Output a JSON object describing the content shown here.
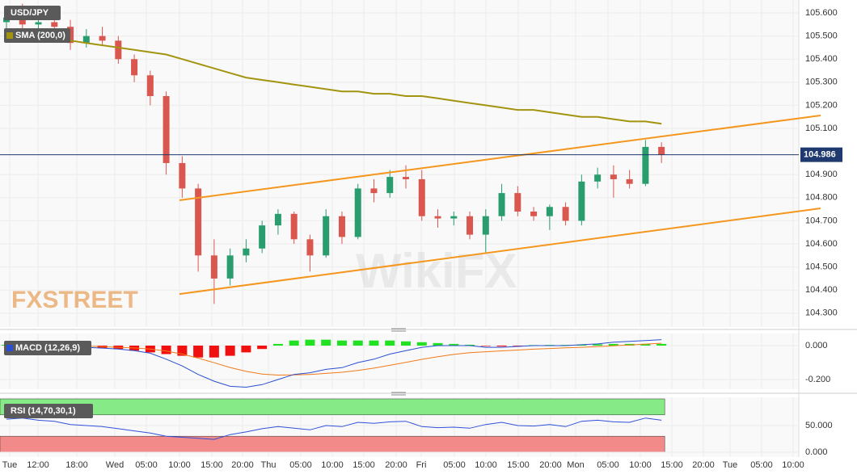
{
  "chart_data": [
    {
      "type": "candlestick",
      "title": "USD/JPY",
      "x_labels": [
        "Tue",
        "12:00",
        "18:00",
        "Wed",
        "05:00",
        "10:00",
        "15:00",
        "20:00",
        "Thu",
        "05:00",
        "10:00",
        "15:00",
        "20:00",
        "Fri",
        "05:00",
        "10:00",
        "15:00",
        "20:00",
        "Mon",
        "05:00",
        "10:00",
        "15:00",
        "20:00",
        "Tue",
        "05:00",
        "10:00"
      ],
      "open": [
        105.56,
        105.58,
        105.55,
        105.56,
        105.54,
        105.47,
        105.5,
        105.48,
        105.4,
        105.33,
        105.24,
        104.95,
        104.84,
        104.55,
        104.45,
        104.55,
        104.58,
        104.68,
        104.73,
        104.62,
        104.55,
        104.72,
        104.63,
        104.84,
        104.82,
        104.89,
        104.88,
        104.72,
        104.71,
        104.72,
        104.64,
        104.72,
        104.82,
        104.74,
        104.72,
        104.76,
        104.7,
        104.87,
        104.9,
        104.88,
        104.86,
        105.02
      ],
      "high": [
        105.62,
        105.64,
        105.6,
        105.6,
        105.57,
        105.53,
        105.54,
        105.5,
        105.42,
        105.35,
        105.26,
        104.98,
        104.86,
        104.62,
        104.58,
        104.62,
        104.7,
        104.75,
        104.74,
        104.64,
        104.75,
        104.74,
        104.86,
        104.88,
        104.92,
        104.94,
        104.92,
        104.75,
        104.74,
        104.74,
        104.75,
        104.86,
        104.85,
        104.76,
        104.77,
        104.78,
        104.9,
        104.93,
        104.94,
        104.92,
        105.05,
        105.04
      ],
      "low": [
        105.5,
        105.52,
        105.5,
        105.52,
        105.44,
        105.45,
        105.46,
        105.38,
        105.3,
        105.2,
        104.9,
        104.8,
        104.48,
        104.34,
        104.42,
        104.52,
        104.56,
        104.64,
        104.6,
        104.48,
        104.54,
        104.6,
        104.62,
        104.78,
        104.8,
        104.84,
        104.7,
        104.67,
        104.68,
        104.62,
        104.56,
        104.7,
        104.72,
        104.7,
        104.66,
        104.68,
        104.68,
        104.84,
        104.8,
        104.84,
        104.85,
        104.95
      ],
      "close": [
        105.58,
        105.55,
        105.56,
        105.54,
        105.47,
        105.5,
        105.48,
        105.4,
        105.33,
        105.24,
        104.95,
        104.84,
        104.55,
        104.45,
        104.55,
        104.58,
        104.68,
        104.73,
        104.62,
        104.55,
        104.72,
        104.63,
        104.84,
        104.82,
        104.89,
        104.88,
        104.72,
        104.71,
        104.72,
        104.64,
        104.72,
        104.82,
        104.74,
        104.72,
        104.76,
        104.7,
        104.87,
        104.9,
        104.88,
        104.86,
        105.02,
        104.986
      ],
      "up_color": "#2a9d6f",
      "down_color": "#d9574f",
      "price_line_color": "#1f3a6e",
      "ylim": [
        104.24,
        105.656
      ],
      "yticks": [
        {
          "value": 104.3,
          "label": "104.300"
        },
        {
          "value": 104.4,
          "label": "104.400"
        },
        {
          "value": 104.5,
          "label": "104.500"
        },
        {
          "value": 104.6,
          "label": "104.600"
        },
        {
          "value": 104.7,
          "label": "104.700"
        },
        {
          "value": 104.8,
          "label": "104.800"
        },
        {
          "value": 104.9,
          "label": "104.900"
        },
        {
          "value": 105.1,
          "label": "105.100"
        },
        {
          "value": 105.2,
          "label": "105.200"
        },
        {
          "value": 105.3,
          "label": "105.300"
        },
        {
          "value": 105.4,
          "label": "105.400"
        },
        {
          "value": 105.5,
          "label": "105.500"
        },
        {
          "value": 105.6,
          "label": "105.600"
        }
      ],
      "overlays": [
        {
          "name": "SMA (200,0)",
          "color": "#a39410",
          "values": [
            105.52,
            105.51,
            105.5,
            105.49,
            105.48,
            105.47,
            105.46,
            105.45,
            105.44,
            105.43,
            105.42,
            105.4,
            105.38,
            105.36,
            105.34,
            105.32,
            105.31,
            105.3,
            105.29,
            105.28,
            105.27,
            105.26,
            105.26,
            105.25,
            105.25,
            105.24,
            105.24,
            105.23,
            105.22,
            105.21,
            105.2,
            105.19,
            105.18,
            105.18,
            105.17,
            105.16,
            105.15,
            105.15,
            105.14,
            105.13,
            105.13,
            105.12
          ]
        }
      ],
      "trendlines": [
        {
          "color": "#f5961e",
          "x": [
            10.83,
            50.96
          ],
          "y": [
            104.789,
            105.156
          ]
        },
        {
          "color": "#f5961e",
          "x": [
            10.83,
            50.96
          ],
          "y": [
            104.383,
            104.754
          ]
        }
      ],
      "watermarks": [
        "FXSTREET",
        "WikiFX"
      ]
    },
    {
      "type": "macd",
      "title": "MACD (12,26,9)",
      "macd": {
        "color": "#2a4fd0",
        "values": [
          0.01,
          0.01,
          0,
          -0.005,
          -0.01,
          -0.01,
          -0.015,
          -0.02,
          -0.03,
          -0.045,
          -0.08,
          -0.12,
          -0.17,
          -0.21,
          -0.24,
          -0.245,
          -0.23,
          -0.2,
          -0.17,
          -0.16,
          -0.14,
          -0.13,
          -0.1,
          -0.08,
          -0.05,
          -0.03,
          -0.01,
          0,
          0,
          0,
          -0.01,
          -0.01,
          -0.005,
          0,
          0,
          0,
          0.005,
          0.01,
          0.02,
          0.025,
          0.03,
          0.035
        ]
      },
      "signal": {
        "color": "#f07a1a",
        "values": [
          0,
          0.005,
          0.005,
          0.003,
          0,
          -0.003,
          -0.006,
          -0.01,
          -0.014,
          -0.02,
          -0.032,
          -0.05,
          -0.074,
          -0.101,
          -0.129,
          -0.152,
          -0.168,
          -0.174,
          -0.173,
          -0.17,
          -0.164,
          -0.157,
          -0.146,
          -0.133,
          -0.116,
          -0.099,
          -0.081,
          -0.065,
          -0.052,
          -0.042,
          -0.036,
          -0.031,
          -0.026,
          -0.021,
          -0.017,
          -0.013,
          -0.01,
          -0.006,
          -0.001,
          0.004,
          0.009,
          0.014
        ]
      },
      "histogram": {
        "up_color": "#22e022",
        "down_color": "#f01010",
        "values": [
          0.005,
          0.003,
          -0.003,
          -0.005,
          -0.008,
          -0.01,
          -0.015,
          -0.02,
          -0.03,
          -0.04,
          -0.05,
          -0.06,
          -0.07,
          -0.07,
          -0.06,
          -0.04,
          -0.02,
          0.01,
          0.03,
          0.035,
          0.035,
          0.03,
          0.03,
          0.03,
          0.03,
          0.025,
          0.02,
          0.015,
          0.01,
          0.005,
          -0.003,
          -0.005,
          -0.003,
          0.003,
          0.004,
          0.004,
          0.006,
          0.008,
          0.01,
          0.01,
          0.01,
          0.01
        ]
      },
      "ylim": [
        -0.2571,
        0.0714
      ],
      "yticks": [
        {
          "value": 0,
          "label": "0.000"
        },
        {
          "value": -0.2,
          "label": "-0.200"
        }
      ]
    },
    {
      "type": "rsi",
      "title": "RSI (14,70,30,1)",
      "color": "#3050d8",
      "values": [
        62,
        64,
        60,
        58,
        52,
        50,
        48,
        44,
        40,
        36,
        30,
        28,
        26,
        24,
        33,
        38,
        44,
        48,
        45,
        42,
        50,
        48,
        56,
        54,
        57,
        58,
        48,
        46,
        47,
        45,
        52,
        56,
        50,
        49,
        52,
        48,
        58,
        60,
        57,
        56,
        64,
        60
      ],
      "bands": [
        {
          "from": 70,
          "to": 100,
          "color": "#86ea86"
        },
        {
          "from": 0,
          "to": 30,
          "color": "#f28a8a"
        }
      ],
      "ylim": [
        -9.1,
        103
      ],
      "yticks": [
        {
          "value": 50,
          "label": "50.000"
        },
        {
          "value": 0,
          "label": "0.000"
        }
      ]
    }
  ]
}
